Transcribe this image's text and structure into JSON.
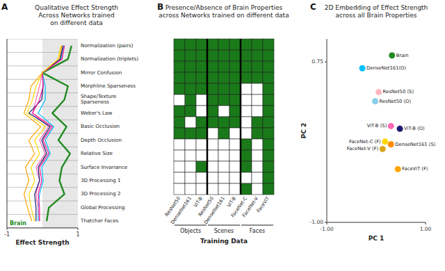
{
  "chart_data": [
    {
      "type": "line",
      "orientation": "horizontal",
      "title": "Qualitative Effect Strength\nAcross Networks trained\non different data",
      "xlabel": "Effect Strength",
      "annotations": [
        "A"
      ],
      "categories": [
        "Normalization (pairs)",
        "Normalization (triplets)",
        "Mirror Confusion",
        "Morphline Sparseness",
        "Shape/Texture\nSparseness",
        "Weber's Law",
        "Basic Occlusion",
        "Depth Occlusion",
        "Relative Size",
        "Surface Invariance",
        "3D Processing 1",
        "3D Processing 2",
        "Global Processing",
        "Thatcher Faces"
      ],
      "xlim": [
        -1,
        1
      ],
      "xticks": [
        -1,
        1
      ],
      "gray_span": [
        0.0,
        1.0
      ],
      "grid": true,
      "series": [
        {
          "name": "Brain",
          "color": "#228B22",
          "values": [
            0.82,
            0.72,
            0.0,
            0.72,
            0.62,
            0.28,
            0.68,
            0.45,
            0.78,
            0.55,
            0.48,
            0.62,
            0.18,
            0.12
          ]
        },
        {
          "color": "#FFA500",
          "values": [
            0.55,
            0.48,
            0.0,
            -0.32,
            -0.38,
            -0.52,
            -0.05,
            -0.38,
            -0.22,
            -0.48,
            -0.38,
            -0.52,
            -0.42,
            -0.3
          ]
        },
        {
          "color": "#00BFFF",
          "values": [
            0.6,
            0.52,
            0.0,
            0.08,
            0.08,
            -0.12,
            0.32,
            0.08,
            0.22,
            -0.02,
            0.02,
            -0.08,
            -0.12,
            -0.12
          ]
        },
        {
          "color": "#FF69B4",
          "values": [
            0.62,
            0.55,
            0.0,
            -0.08,
            -0.18,
            -0.28,
            0.18,
            -0.08,
            0.08,
            -0.18,
            -0.08,
            -0.18,
            -0.12,
            -0.08
          ]
        },
        {
          "color": "#191970",
          "values": [
            0.58,
            0.5,
            0.0,
            0.02,
            -0.02,
            -0.38,
            0.22,
            -0.02,
            0.12,
            -0.12,
            -0.08,
            -0.22,
            -0.18,
            -0.18
          ]
        },
        {
          "color": "#FF1493",
          "values": [
            0.62,
            0.55,
            0.0,
            0.02,
            -0.08,
            -0.28,
            0.28,
            0.02,
            0.18,
            -0.08,
            -0.02,
            -0.12,
            -0.08,
            -0.08
          ]
        },
        {
          "color": "#FFD700",
          "values": [
            0.52,
            0.44,
            0.0,
            -0.18,
            -0.28,
            -0.44,
            0.08,
            -0.22,
            -0.08,
            -0.32,
            -0.22,
            -0.38,
            -0.32,
            -0.22
          ]
        }
      ]
    },
    {
      "type": "heatmap",
      "title": "Presence/Absence of Brain Properties\nacross Networks trained on different data",
      "xlabel": "Training Data",
      "annotations": [
        "B"
      ],
      "tick_labels": "x",
      "categories": [
        "ResNet50",
        "DenseNet161",
        "ViT-B",
        "ResNet50",
        "DenseNet161",
        "ViT-B",
        "FaceNet-C",
        "FaceNet-V",
        "FaceViT"
      ],
      "groups": [
        {
          "label": "Objects",
          "size": 3
        },
        {
          "label": "Scenes",
          "size": 3
        },
        {
          "label": "Faces",
          "size": 3
        }
      ],
      "color": "#1a7a1a",
      "cells": [
        [
          1,
          1,
          1,
          1,
          1,
          1,
          1,
          1,
          1
        ],
        [
          1,
          1,
          1,
          1,
          1,
          1,
          1,
          1,
          1
        ],
        [
          1,
          1,
          1,
          1,
          1,
          1,
          1,
          1,
          1
        ],
        [
          1,
          1,
          1,
          1,
          1,
          1,
          1,
          1,
          1
        ],
        [
          1,
          1,
          1,
          1,
          1,
          1,
          0,
          0,
          1
        ],
        [
          0,
          1,
          0,
          1,
          1,
          1,
          0,
          0,
          1
        ],
        [
          1,
          1,
          0,
          1,
          0,
          1,
          0,
          0,
          1
        ],
        [
          1,
          0,
          1,
          1,
          1,
          1,
          0,
          1,
          1
        ],
        [
          1,
          1,
          1,
          0,
          1,
          0,
          0,
          1,
          1
        ],
        [
          0,
          0,
          0,
          0,
          0,
          0,
          1,
          0,
          1
        ],
        [
          0,
          0,
          0,
          0,
          0,
          0,
          1,
          0,
          1
        ],
        [
          0,
          0,
          1,
          0,
          0,
          0,
          1,
          0,
          1
        ],
        [
          0,
          0,
          0,
          0,
          0,
          0,
          0,
          0,
          1
        ],
        [
          0,
          0,
          0,
          0,
          0,
          0,
          1,
          0,
          1
        ]
      ]
    },
    {
      "type": "scatter",
      "title": "2D Embedding of Effect Strength\nacross all Brain Properties",
      "xlabel": "PC 1",
      "ylabel": "PC 2",
      "annotations": [
        "C"
      ],
      "xlim": [
        -1.0,
        1.0
      ],
      "ylim": [
        -1.0,
        1.0
      ],
      "xticks": [
        {
          "value": -1.0,
          "label": "-1.00"
        },
        {
          "value": 1.0,
          "label": "1.00"
        }
      ],
      "yticks": [
        {
          "value": -1.0,
          "label": "-1.00"
        },
        {
          "value": 0.75,
          "label": "0.75"
        }
      ],
      "labels": [
        "Brain",
        "DenseNet161(O)",
        "ResNet50 (S)",
        "ResNet50 (O)",
        "ViT-B (S)",
        "ViT-B (O)",
        "FaceNet-C (F)",
        "DenseNet161 (S)",
        "FaceNet-V (F)",
        "FaceViT (F)"
      ],
      "x": [
        0.32,
        -0.28,
        0.05,
        -0.02,
        0.3,
        0.48,
        0.18,
        0.3,
        0.13,
        0.44
      ],
      "values": [
        0.82,
        0.68,
        0.42,
        0.32,
        0.05,
        0.02,
        -0.12,
        -0.15,
        -0.2,
        -0.42
      ],
      "colors": [
        "#228B22",
        "#00BFFF",
        "#FFB6C1",
        "#87CEEB",
        "#FF69B4",
        "#191970",
        "#FFD700",
        "#FF8C00",
        "#DAA520",
        "#FFA500"
      ]
    }
  ]
}
